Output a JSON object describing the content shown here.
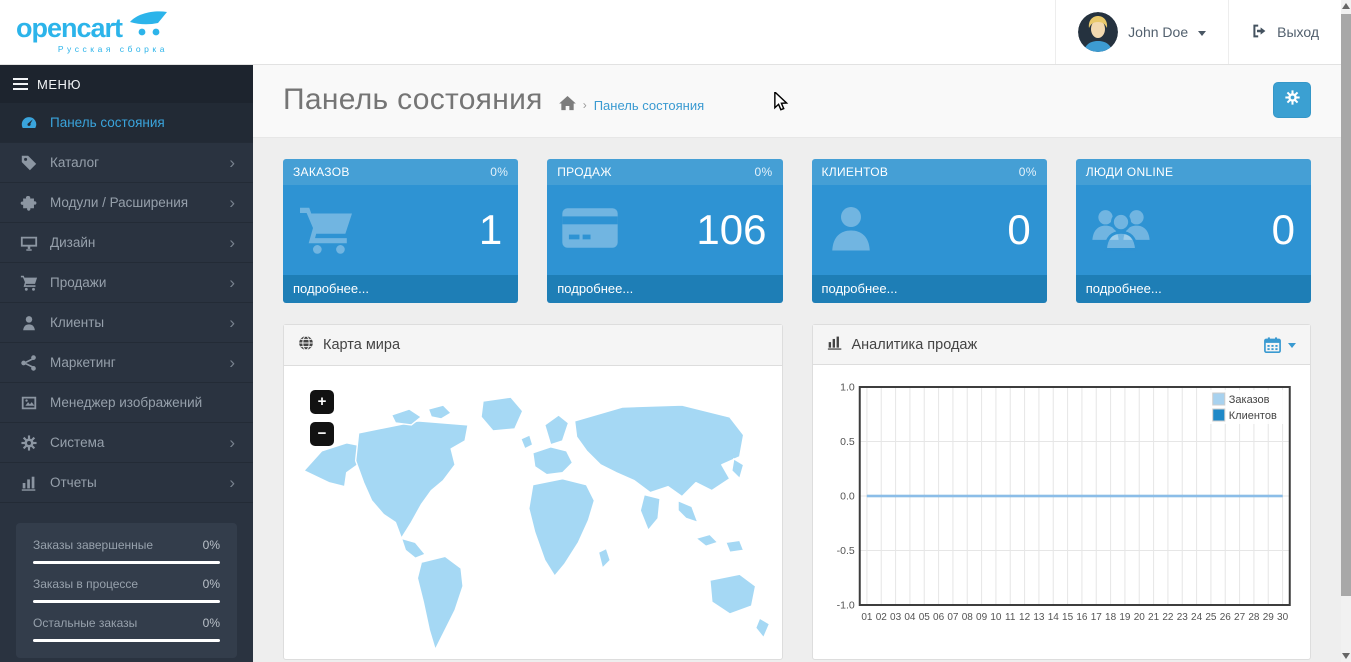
{
  "header": {
    "logo_text": "opencart",
    "logo_subtitle": "Русская сборка",
    "user_name": "John Doe",
    "logout_label": "Выход"
  },
  "sidebar": {
    "menu_label": "МЕНЮ",
    "chevron_glyph": "›",
    "items": [
      {
        "label": "Панель состояния",
        "icon": "dashboard-icon",
        "active": true,
        "has_submenu": false
      },
      {
        "label": "Каталог",
        "icon": "tags-icon",
        "active": false,
        "has_submenu": true
      },
      {
        "label": "Модули / Расширения",
        "icon": "puzzle-icon",
        "active": false,
        "has_submenu": true
      },
      {
        "label": "Дизайн",
        "icon": "monitor-icon",
        "active": false,
        "has_submenu": true
      },
      {
        "label": "Продажи",
        "icon": "cart-icon",
        "active": false,
        "has_submenu": true
      },
      {
        "label": "Клиенты",
        "icon": "user-icon",
        "active": false,
        "has_submenu": true
      },
      {
        "label": "Маркетинг",
        "icon": "share-icon",
        "active": false,
        "has_submenu": true
      },
      {
        "label": "Менеджер изображений",
        "icon": "image-icon",
        "active": false,
        "has_submenu": false
      },
      {
        "label": "Система",
        "icon": "gear-icon",
        "active": false,
        "has_submenu": true
      },
      {
        "label": "Отчеты",
        "icon": "bar-chart-icon",
        "active": false,
        "has_submenu": true
      }
    ],
    "order_stats": [
      {
        "label": "Заказы завершенные",
        "value": "0%"
      },
      {
        "label": "Заказы в процессе",
        "value": "0%"
      },
      {
        "label": "Остальные заказы",
        "value": "0%"
      }
    ]
  },
  "page": {
    "title": "Панель состояния",
    "breadcrumb_separator": "›",
    "breadcrumb": [
      {
        "label": "Панель состояния"
      }
    ]
  },
  "tiles": [
    {
      "title": "ЗАКАЗОВ",
      "percent": "0%",
      "value": "1",
      "link": "подробнее...",
      "icon": "cart-icon"
    },
    {
      "title": "ПРОДАЖ",
      "percent": "0%",
      "value": "106",
      "link": "подробнее...",
      "icon": "credit-card-icon"
    },
    {
      "title": "КЛИЕНТОВ",
      "percent": "0%",
      "value": "0",
      "link": "подробнее...",
      "icon": "user-icon"
    },
    {
      "title": "ЛЮДИ ONLINE",
      "percent": "",
      "value": "0",
      "link": "подробнее...",
      "icon": "users-icon"
    }
  ],
  "panels": {
    "map": {
      "title": "Карта мира",
      "zoom_in_label": "+",
      "zoom_out_label": "−"
    },
    "analytics": {
      "title": "Аналитика продаж"
    }
  },
  "chart_data": {
    "type": "line",
    "title": "Аналитика продаж",
    "x": [
      "01",
      "02",
      "03",
      "04",
      "05",
      "06",
      "07",
      "08",
      "09",
      "10",
      "11",
      "12",
      "13",
      "14",
      "15",
      "16",
      "17",
      "18",
      "19",
      "20",
      "21",
      "22",
      "23",
      "24",
      "25",
      "26",
      "27",
      "28",
      "29",
      "30"
    ],
    "series": [
      {
        "name": "Заказов",
        "color": "#a8d2ef",
        "line_color": "#8bbde8",
        "values": [
          0,
          0,
          0,
          0,
          0,
          0,
          0,
          0,
          0,
          0,
          0,
          0,
          0,
          0,
          0,
          0,
          0,
          0,
          0,
          0,
          0,
          0,
          0,
          0,
          0,
          0,
          0,
          0,
          0,
          0
        ]
      },
      {
        "name": "Клиентов",
        "color": "#1e88c7",
        "line_color": "#1e88c7",
        "values": [
          0,
          0,
          0,
          0,
          0,
          0,
          0,
          0,
          0,
          0,
          0,
          0,
          0,
          0,
          0,
          0,
          0,
          0,
          0,
          0,
          0,
          0,
          0,
          0,
          0,
          0,
          0,
          0,
          0,
          0
        ]
      }
    ],
    "xlabel": "",
    "ylabel": "",
    "ylim": [
      -1.0,
      1.0
    ],
    "yticks": [
      1.0,
      0.5,
      0.0,
      -0.5,
      -1.0
    ],
    "grid": true,
    "legend_position": "top-right"
  },
  "colors": {
    "accent": "#3a9ad1",
    "logo_blue": "#2cb4ea",
    "sidebar_bg": "#2a3340",
    "tile_header": "#459fd5",
    "tile_body": "#2e93d3",
    "tile_footer": "#1e7eb6",
    "map_fill": "#a5d8f4",
    "chart_border": "#3d3d3d"
  }
}
